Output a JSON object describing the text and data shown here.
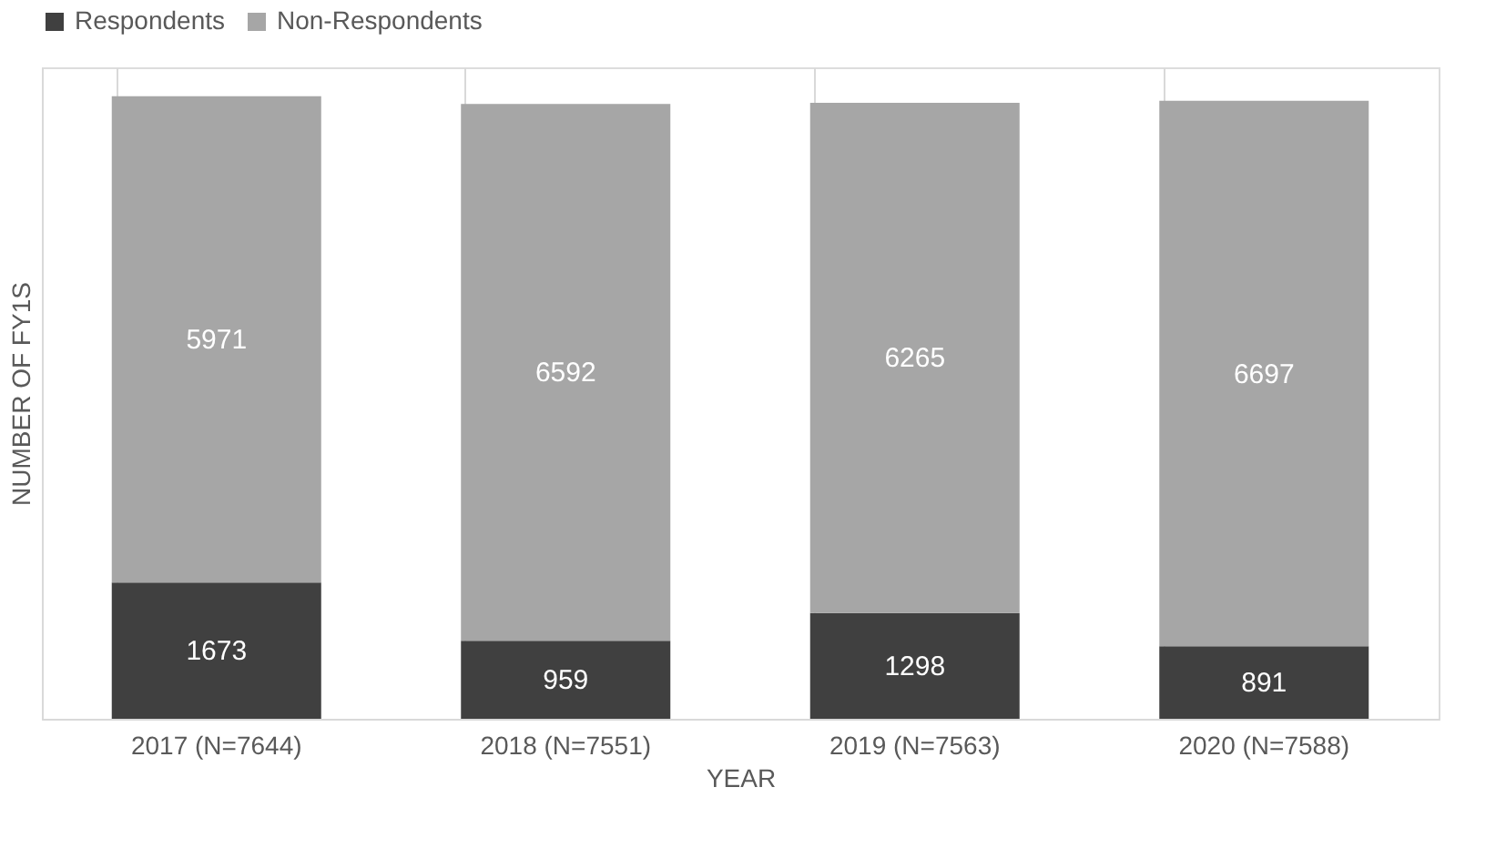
{
  "chart_data": {
    "type": "bar",
    "stacked": true,
    "xlabel": "YEAR",
    "ylabel": "NUMBER OF FY1S",
    "categories": [
      "2017 (N=7644)",
      "2018 (N=7551)",
      "2019 (N=7563)",
      "2020 (N=7588)"
    ],
    "series": [
      {
        "name": "Respondents",
        "color": "#404040",
        "values": [
          1673,
          959,
          1298,
          891
        ]
      },
      {
        "name": "Non-Respondents",
        "color": "#a6a6a6",
        "values": [
          5971,
          6592,
          6265,
          6697
        ]
      }
    ],
    "data_labels": true,
    "legend": "top",
    "grid": "x",
    "tick_labels": "x"
  }
}
